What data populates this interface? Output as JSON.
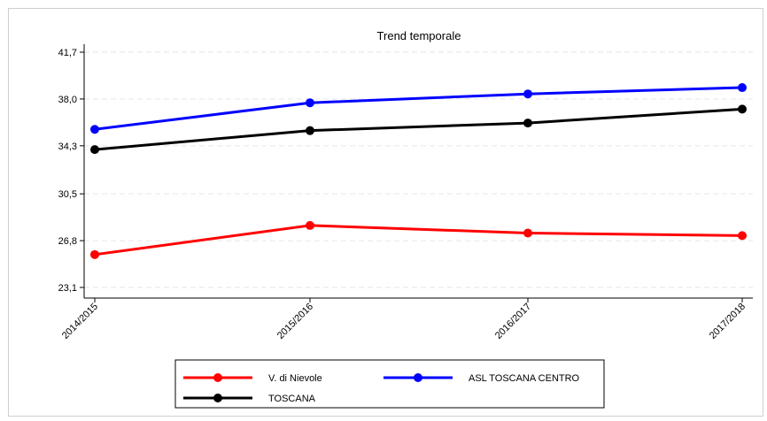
{
  "chart_data": {
    "type": "line",
    "title": "Trend temporale",
    "xlabel": "",
    "ylabel": "",
    "categories": [
      "2014/2015",
      "2015/2016",
      "2016/2017",
      "2017/2018"
    ],
    "yticks": [
      "41,7",
      "38,0",
      "34,3",
      "30,5",
      "26,8",
      "23,1"
    ],
    "ylim": [
      23.1,
      41.7
    ],
    "grid": true,
    "legend_position": "bottom",
    "series": [
      {
        "name": "V. di Nievole",
        "color": "#ff0000",
        "values": [
          25.7,
          28.0,
          27.4,
          27.2
        ]
      },
      {
        "name": "ASL TOSCANA CENTRO",
        "color": "#0000ff",
        "values": [
          35.6,
          37.7,
          38.4,
          38.9
        ]
      },
      {
        "name": "TOSCANA",
        "color": "#000000",
        "values": [
          34.0,
          35.5,
          36.1,
          37.2
        ]
      }
    ]
  }
}
